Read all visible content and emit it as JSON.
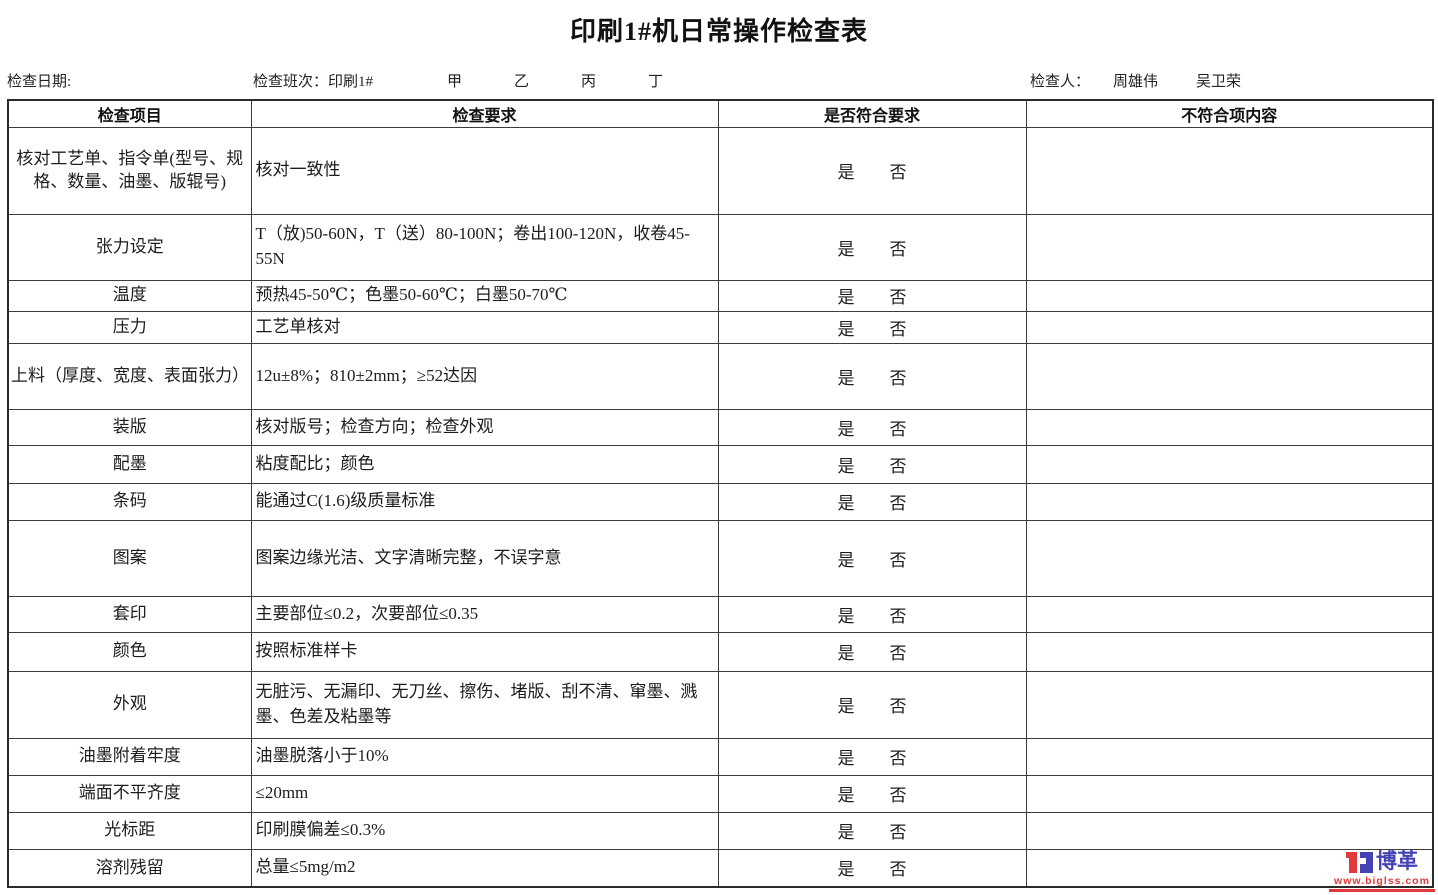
{
  "title": "印刷1#机日常操作检查表",
  "info": {
    "date_label": "检查日期:",
    "shift_label": "检查班次：印刷1#",
    "shifts": [
      "甲",
      "乙",
      "丙",
      "丁"
    ],
    "inspector_label": "检查人：",
    "inspectors": [
      "周雄伟",
      "吴卫荣"
    ]
  },
  "table": {
    "headers": [
      "检查项目",
      "检查要求",
      "是否符合要求",
      "不符合项内容"
    ],
    "yes_label": "是",
    "no_label": "否",
    "rows": [
      {
        "item": "核对工艺单、指令单(型号、规格、数量、油墨、版辊号)",
        "requirement": "核对一致性"
      },
      {
        "item": "张力设定",
        "requirement": "T（放)50-60N，T（送）80-100N；卷出100-120N，收卷45-55N"
      },
      {
        "item": "温度",
        "requirement": "预热45-50℃；色墨50-60℃；白墨50-70℃"
      },
      {
        "item": "压力",
        "requirement": "工艺单核对"
      },
      {
        "item": "上料（厚度、宽度、表面张力）",
        "requirement": "12u±8%；810±2mm；≥52达因"
      },
      {
        "item": "装版",
        "requirement": "核对版号；检查方向；检查外观"
      },
      {
        "item": "配墨",
        "requirement": "粘度配比；颜色"
      },
      {
        "item": "条码",
        "requirement": "能通过C(1.6)级质量标准"
      },
      {
        "item": "图案",
        "requirement": "图案边缘光洁、文字清晰完整，不误字意"
      },
      {
        "item": "套印",
        "requirement": "主要部位≤0.2，次要部位≤0.35"
      },
      {
        "item": "颜色",
        "requirement": "按照标准样卡"
      },
      {
        "item": "外观",
        "requirement": "无脏污、无漏印、无刀丝、擦伤、堵版、刮不清、窜墨、溅墨、色差及粘墨等"
      },
      {
        "item": "油墨附着牢度",
        "requirement": "油墨脱落小于10%"
      },
      {
        "item": "端面不平齐度",
        "requirement": "≤20mm"
      },
      {
        "item": "光标距",
        "requirement": "印刷膜偏差≤0.3%"
      },
      {
        "item": "溶剂残留",
        "requirement": "总量≤5mg/m2"
      }
    ]
  },
  "logo": {
    "brand": "博革",
    "url": "www.biglss.com",
    "colors": {
      "blue": "#4543b4",
      "red": "#e03a3a"
    }
  }
}
